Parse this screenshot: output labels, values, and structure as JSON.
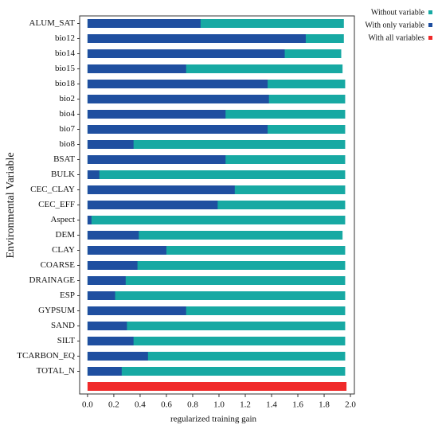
{
  "chart_data": {
    "type": "bar",
    "orientation": "horizontal",
    "x_label": "regularized training gain",
    "y_label": "Environmental Variable",
    "categories": [
      "ALUM_SAT",
      "bio12",
      "bio14",
      "bio15",
      "bio18",
      "bio2",
      "bio4",
      "bio7",
      "bio8",
      "BSAT",
      "BULK",
      "CEC_CLAY",
      "CEC_EFF",
      "Aspect",
      "DEM",
      "CLAY",
      "COARSE",
      "DRAINAGE",
      "ESP",
      "GYPSUM",
      "SAND",
      "SILT",
      "TCARBON_EQ",
      "TOTAL_N",
      null
    ],
    "series": [
      {
        "name": "Without variable",
        "color": "#17a9a3",
        "values": [
          1.95,
          1.95,
          1.93,
          1.94,
          1.96,
          1.96,
          1.96,
          1.96,
          1.96,
          1.96,
          1.96,
          1.96,
          1.96,
          1.96,
          1.94,
          1.96,
          1.96,
          1.96,
          1.96,
          1.96,
          1.96,
          1.96,
          1.96,
          1.96,
          null
        ]
      },
      {
        "name": "With only variable",
        "color": "#1f4fa0",
        "values": [
          0.86,
          1.66,
          1.5,
          0.75,
          1.37,
          1.38,
          1.05,
          1.37,
          0.35,
          1.05,
          0.09,
          1.12,
          0.99,
          0.03,
          0.39,
          0.6,
          0.38,
          0.29,
          0.21,
          0.75,
          0.3,
          0.35,
          0.46,
          0.26,
          null
        ]
      },
      {
        "name": "With all variables",
        "color": "#f02a2a",
        "values": [
          null,
          null,
          null,
          null,
          null,
          null,
          null,
          null,
          null,
          null,
          null,
          null,
          null,
          null,
          null,
          null,
          null,
          null,
          null,
          null,
          null,
          null,
          null,
          null,
          1.97
        ]
      }
    ],
    "xlim": [
      -0.06,
      2.03
    ],
    "xticks": [
      {
        "value": 0,
        "label": "0.0"
      },
      0.2,
      0.4,
      0.6,
      0.8,
      {
        "value": 1,
        "label": "1.0"
      },
      1.2,
      1.4,
      1.6,
      1.8,
      {
        "value": 2,
        "label": "2.0"
      }
    ]
  }
}
